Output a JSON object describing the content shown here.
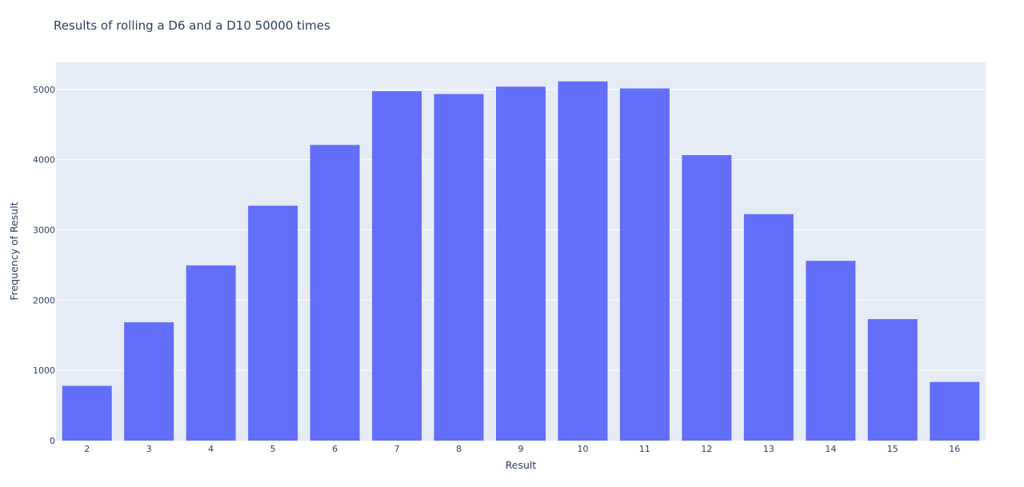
{
  "chart_data": {
    "type": "bar",
    "title": "Results of rolling a D6 and a D10 50000 times",
    "xlabel": "Result",
    "ylabel": "Frequency of Result",
    "categories": [
      "2",
      "3",
      "4",
      "5",
      "6",
      "7",
      "8",
      "9",
      "10",
      "11",
      "12",
      "13",
      "14",
      "15",
      "16"
    ],
    "values": [
      780,
      1685,
      2495,
      3345,
      4210,
      4975,
      4935,
      5040,
      5115,
      5015,
      4065,
      3225,
      2560,
      1730,
      835
    ],
    "ylim": [
      0,
      5386
    ],
    "yticks": [
      0,
      1000,
      2000,
      3000,
      4000,
      5000
    ],
    "grid": true,
    "bar_color": "#636efa",
    "plot_background": "#e5ecf6",
    "gridline_color": "#ffffff"
  }
}
